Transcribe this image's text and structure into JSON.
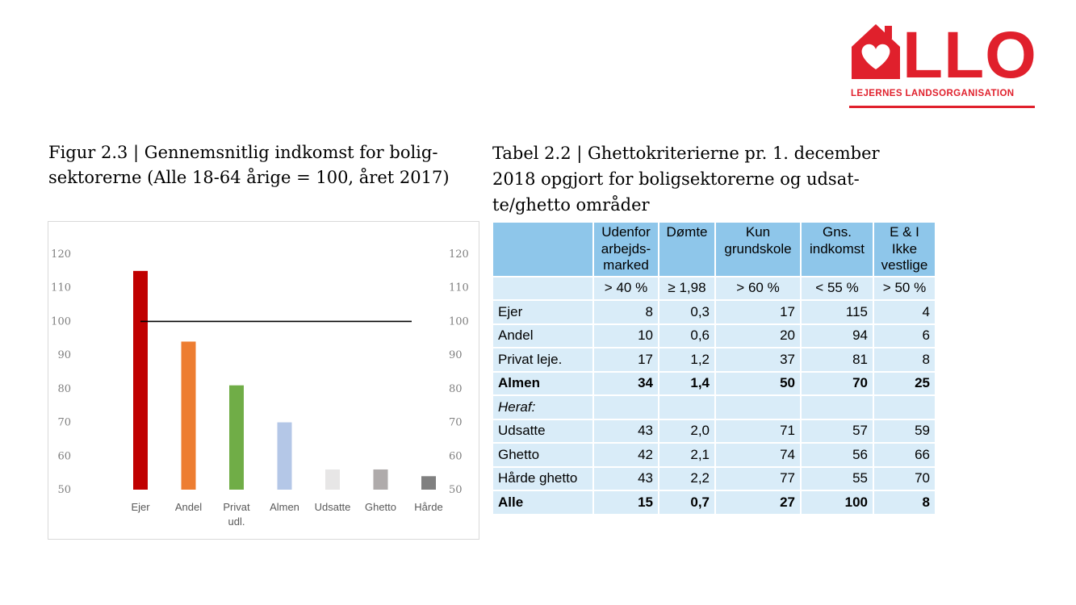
{
  "logo": {
    "word": "LLO",
    "subtitle": "LEJERNES LANDSORGANISATION",
    "color": "#e0202c"
  },
  "figure": {
    "caption_line1": "Figur 2.3 | Gennemsnitlig indkomst for bolig-",
    "caption_line2": "sektorerne (Alle 18-64 årige = 100, året 2017)"
  },
  "chart_data": {
    "type": "bar",
    "categories": [
      "Ejer",
      "Andel",
      "Privat udl.",
      "Almen",
      "Udsatte",
      "Ghetto",
      "Hårde"
    ],
    "category_lines": [
      [
        "Ejer"
      ],
      [
        "Andel"
      ],
      [
        "Privat",
        "udl."
      ],
      [
        "Almen"
      ],
      [
        "Udsatte"
      ],
      [
        "Ghetto"
      ],
      [
        "Hårde"
      ]
    ],
    "values": [
      115,
      94,
      81,
      70,
      56,
      56,
      54
    ],
    "colors": [
      "#c00000",
      "#ed7d31",
      "#70ad47",
      "#b4c7e7",
      "#e7e6e6",
      "#afabab",
      "#808080"
    ],
    "reference_line": 100,
    "ylim": [
      50,
      120
    ],
    "yticks": [
      50,
      60,
      70,
      80,
      90,
      100,
      110,
      120
    ],
    "secondary_axis": true,
    "grid": false,
    "legend": "none"
  },
  "table": {
    "caption_line1": "Tabel 2.2 | Ghettokriterierne pr. 1. december",
    "caption_line2": "2018 opgjort for boligsektorerne og udsat-",
    "caption_line3": "te/ghetto områder",
    "header_color": "#8ec6ea",
    "cell_color": "#d9ecf8",
    "headers": [
      [
        ""
      ],
      [
        "Udenfor",
        "arbejds-",
        "marked"
      ],
      [
        "Dømte"
      ],
      [
        "Kun",
        "grundskole"
      ],
      [
        "Gns.",
        "indkomst"
      ],
      [
        "E & I",
        "Ikke",
        "vestlige"
      ]
    ],
    "criteria": [
      "",
      "> 40 %",
      "≥ 1,98",
      "> 60 %",
      "< 55 %",
      "> 50 %"
    ],
    "rows": [
      {
        "cells": [
          "Ejer",
          "8",
          "0,3",
          "17",
          "115",
          "4"
        ],
        "bold": false,
        "italic": false
      },
      {
        "cells": [
          "Andel",
          "10",
          "0,6",
          "20",
          "94",
          "6"
        ],
        "bold": false,
        "italic": false
      },
      {
        "cells": [
          "Privat leje.",
          "17",
          "1,2",
          "37",
          "81",
          "8"
        ],
        "bold": false,
        "italic": false
      },
      {
        "cells": [
          "Almen",
          "34",
          "1,4",
          "50",
          "70",
          "25"
        ],
        "bold": true,
        "italic": false
      },
      {
        "cells": [
          "Heraf:",
          "",
          "",
          "",
          "",
          ""
        ],
        "bold": false,
        "italic": true
      },
      {
        "cells": [
          "Udsatte",
          "43",
          "2,0",
          "71",
          "57",
          "59"
        ],
        "bold": false,
        "italic": false
      },
      {
        "cells": [
          "Ghetto",
          "42",
          "2,1",
          "74",
          "56",
          "66"
        ],
        "bold": false,
        "italic": false
      },
      {
        "cells": [
          "Hårde ghetto",
          "43",
          "2,2",
          "77",
          "55",
          "70"
        ],
        "bold": false,
        "italic": false
      },
      {
        "cells": [
          "Alle",
          "15",
          "0,7",
          "27",
          "100",
          "8"
        ],
        "bold": true,
        "italic": false
      }
    ]
  }
}
